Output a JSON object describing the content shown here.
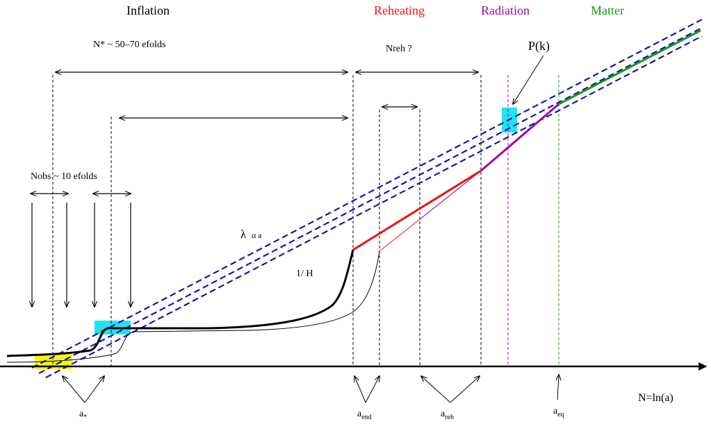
{
  "eras": {
    "inflation": "Inflation",
    "reheating": "Reheating",
    "radiation": "Radiation",
    "matter": "Matter"
  },
  "labels": {
    "n_star": "N* ~ 50–70 efolds",
    "n_reh": "Nreh ?",
    "pk": "P(k)",
    "n_obs": "Nobs ~ 10 efolds",
    "lambda_main": "λ",
    "lambda_prop": "α a",
    "inv_h": "1/ H",
    "x_axis": "N=ln(a)"
  },
  "scale_factors": {
    "a_star": {
      "base": "a",
      "sub": "*"
    },
    "a_end": {
      "base": "a",
      "sub": "end"
    },
    "a_reh": {
      "base": "a",
      "sub": "reh"
    },
    "a_eq": {
      "base": "a",
      "sub": "eq"
    }
  },
  "colors": {
    "reheating": "#ee1111",
    "radiation": "#9a0aa6",
    "matter": "#1a9a1a",
    "wavelength_lines": "#1616aa",
    "highlight_cyan": "#1ee5ef",
    "highlight_yellow": "#f5f510",
    "curve": "#000000"
  }
}
